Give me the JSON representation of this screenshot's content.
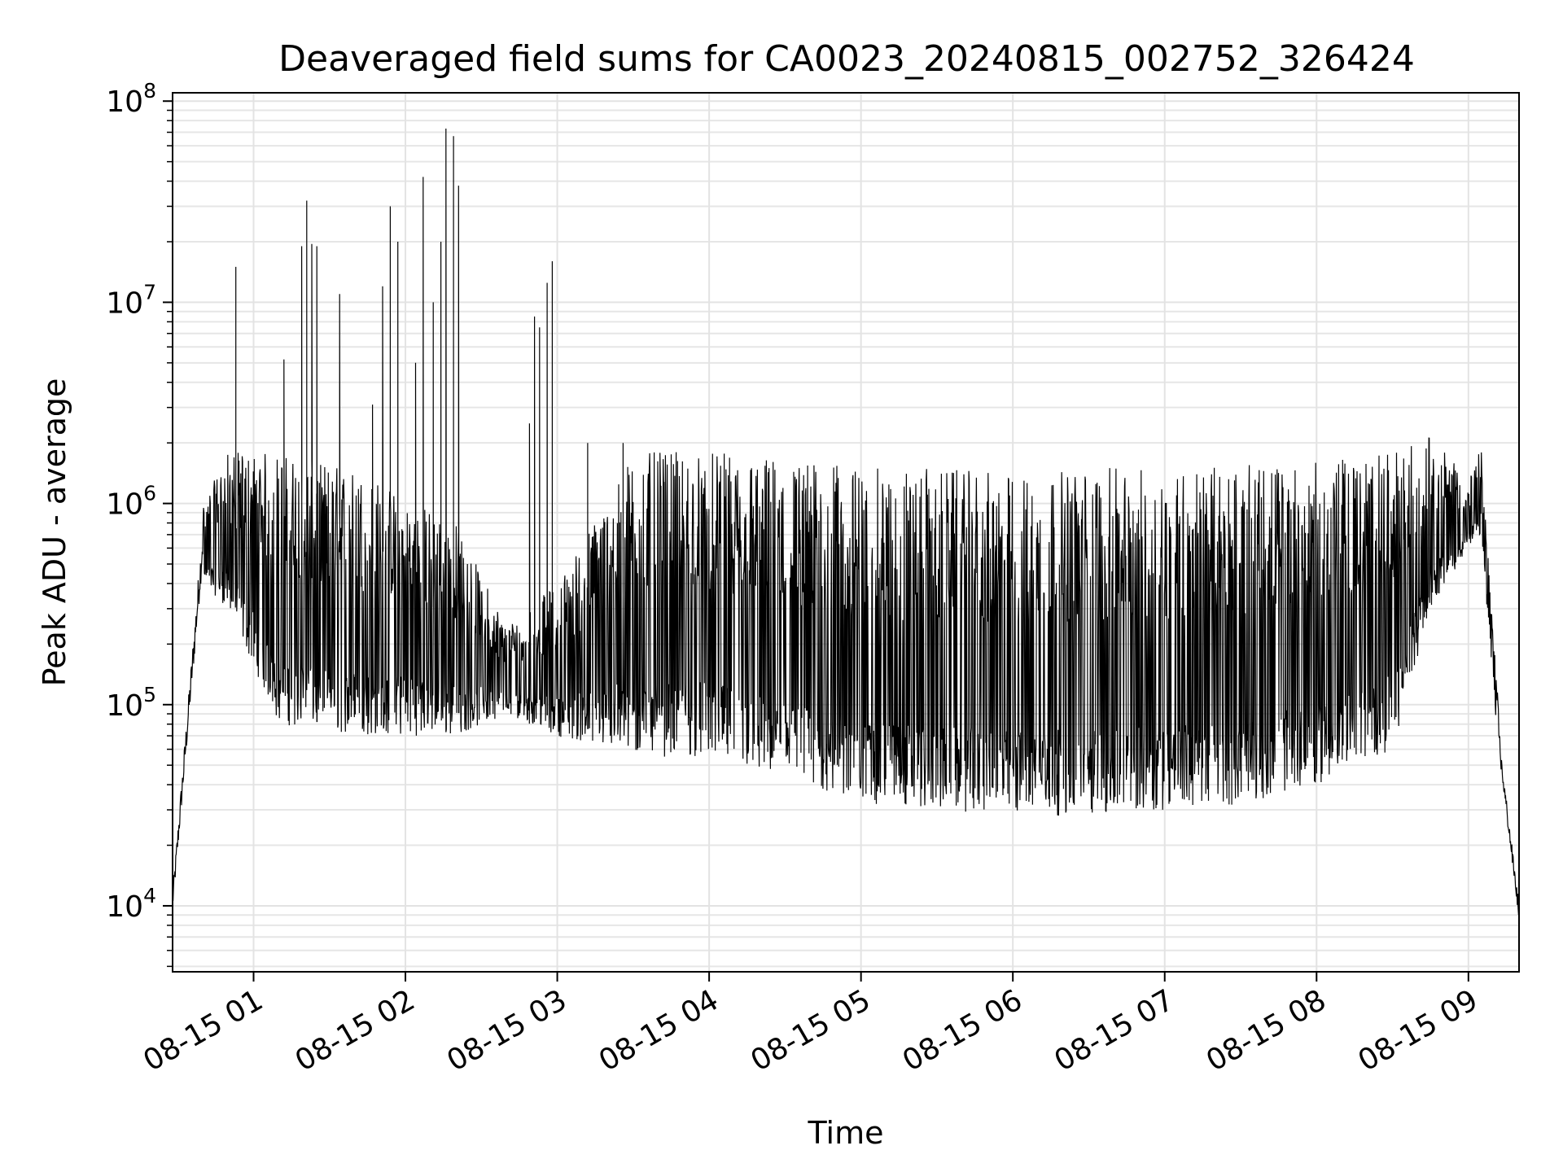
{
  "chart_data": {
    "type": "line",
    "title": "Deaveraged field sums for CA0023_20240815_002752_326424",
    "xlabel": "Time",
    "ylabel": "Peak ADU - average",
    "yscale": "log",
    "ylim": [
      4700,
      110000000
    ],
    "xlim": [
      "2024-08-15 00:28",
      "2024-08-15 09:20"
    ],
    "grid": true,
    "x_ticks": [
      "08-15 01",
      "08-15 02",
      "08-15 03",
      "08-15 04",
      "08-15 05",
      "08-15 06",
      "08-15 07",
      "08-15 08",
      "08-15 09"
    ],
    "y_ticks": [
      {
        "base": "10",
        "exp": "4",
        "value": 10000
      },
      {
        "base": "10",
        "exp": "5",
        "value": 100000
      },
      {
        "base": "10",
        "exp": "6",
        "value": 1000000
      },
      {
        "base": "10",
        "exp": "7",
        "value": 10000000
      },
      {
        "base": "10",
        "exp": "8",
        "value": 100000000
      }
    ],
    "line_color": "#000000",
    "series": [
      {
        "name": "",
        "envelope": [
          {
            "t": "2024-08-15 00:28",
            "low": 8000,
            "high": 13000
          },
          {
            "t": "2024-08-15 00:40",
            "low": 400000,
            "high": 1000000
          },
          {
            "t": "2024-08-15 00:50",
            "low": 300000,
            "high": 1800000
          },
          {
            "t": "2024-08-15 01:10",
            "low": 80000,
            "high": 1800000
          },
          {
            "t": "2024-08-15 01:40",
            "low": 70000,
            "high": 1500000
          },
          {
            "t": "2024-08-15 02:20",
            "low": 70000,
            "high": 800000
          },
          {
            "t": "2024-08-15 02:40",
            "low": 90000,
            "high": 250000
          },
          {
            "t": "2024-08-15 03:00",
            "low": 70000,
            "high": 400000
          },
          {
            "t": "2024-08-15 03:30",
            "low": 55000,
            "high": 1800000
          },
          {
            "t": "2024-08-15 04:00",
            "low": 55000,
            "high": 1800000
          },
          {
            "t": "2024-08-15 04:30",
            "low": 40000,
            "high": 1700000
          },
          {
            "t": "2024-08-15 05:00",
            "low": 32000,
            "high": 1500000
          },
          {
            "t": "2024-08-15 05:30",
            "low": 30000,
            "high": 1500000
          },
          {
            "t": "2024-08-15 06:00",
            "low": 28000,
            "high": 1400000
          },
          {
            "t": "2024-08-15 06:30",
            "low": 28000,
            "high": 1500000
          },
          {
            "t": "2024-08-15 07:00",
            "low": 30000,
            "high": 1500000
          },
          {
            "t": "2024-08-15 07:30",
            "low": 32000,
            "high": 1550000
          },
          {
            "t": "2024-08-15 08:00",
            "low": 40000,
            "high": 1600000
          },
          {
            "t": "2024-08-15 08:30",
            "low": 60000,
            "high": 1800000
          },
          {
            "t": "2024-08-15 08:45",
            "low": 300000,
            "high": 2200000
          },
          {
            "t": "2024-08-15 09:00",
            "low": 600000,
            "high": 1300000
          },
          {
            "t": "2024-08-15 09:05",
            "low": 700000,
            "high": 1900000
          },
          {
            "t": "2024-08-15 09:13",
            "low": 40000,
            "high": 60000
          },
          {
            "t": "2024-08-15 09:20",
            "low": 7500,
            "high": 11000
          }
        ],
        "spikes": [
          {
            "t": "2024-08-15 00:53",
            "value": 15000000
          },
          {
            "t": "2024-08-15 01:12",
            "value": 5200000
          },
          {
            "t": "2024-08-15 01:19",
            "value": 19000000
          },
          {
            "t": "2024-08-15 01:21",
            "value": 32000000
          },
          {
            "t": "2024-08-15 01:23",
            "value": 19500000
          },
          {
            "t": "2024-08-15 01:25",
            "value": 19000000
          },
          {
            "t": "2024-08-15 01:34",
            "value": 11000000
          },
          {
            "t": "2024-08-15 01:47",
            "value": 3100000
          },
          {
            "t": "2024-08-15 01:51",
            "value": 12000000
          },
          {
            "t": "2024-08-15 01:54",
            "value": 30000000
          },
          {
            "t": "2024-08-15 01:57",
            "value": 20000000
          },
          {
            "t": "2024-08-15 02:04",
            "value": 5000000
          },
          {
            "t": "2024-08-15 02:07",
            "value": 42000000
          },
          {
            "t": "2024-08-15 02:11",
            "value": 10000000
          },
          {
            "t": "2024-08-15 02:14",
            "value": 20000000
          },
          {
            "t": "2024-08-15 02:16",
            "value": 73000000
          },
          {
            "t": "2024-08-15 02:19",
            "value": 67000000
          },
          {
            "t": "2024-08-15 02:21",
            "value": 38000000
          },
          {
            "t": "2024-08-15 02:49",
            "value": 2500000
          },
          {
            "t": "2024-08-15 02:51",
            "value": 8500000
          },
          {
            "t": "2024-08-15 02:53",
            "value": 7500000
          },
          {
            "t": "2024-08-15 02:56",
            "value": 12500000
          },
          {
            "t": "2024-08-15 02:58",
            "value": 16000000
          },
          {
            "t": "2024-08-15 03:12",
            "value": 2000000
          },
          {
            "t": "2024-08-15 03:26",
            "value": 2000000
          }
        ]
      }
    ]
  }
}
